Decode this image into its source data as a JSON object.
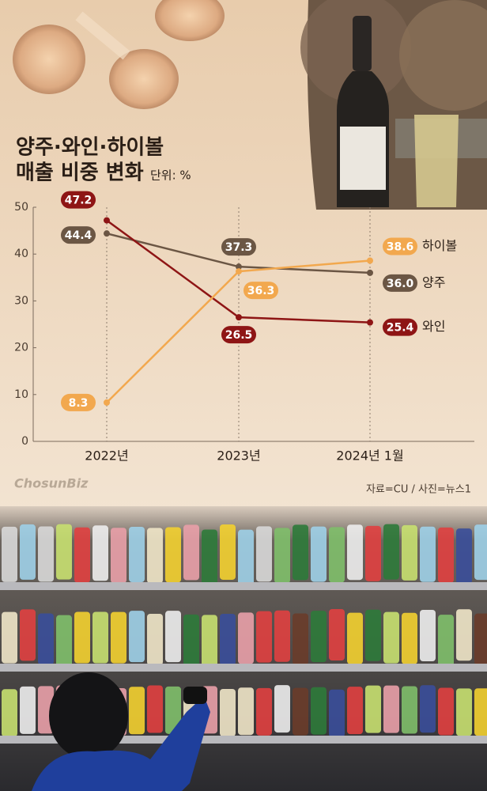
{
  "chart_data": {
    "type": "line",
    "title_lines": [
      "양주·와인·하이볼",
      "매출 비중 변화"
    ],
    "unit": "단위: %",
    "categories": [
      "2022년",
      "2023년",
      "2024년 1월"
    ],
    "series": [
      {
        "name": "양주",
        "color": "#6b5644",
        "values": [
          44.4,
          37.3,
          36.0
        ],
        "value_labels": [
          "44.4",
          "37.3",
          "36.0"
        ]
      },
      {
        "name": "와인",
        "color": "#8e1515",
        "values": [
          47.2,
          26.5,
          25.4
        ]
      },
      {
        "name": "하이볼",
        "color": "#f2a84e",
        "values": [
          8.3,
          36.3,
          38.6
        ]
      }
    ],
    "ylim": [
      0,
      50
    ],
    "yticks": [
      0,
      10,
      20,
      30,
      40,
      50
    ],
    "logo": "ChosunBiz",
    "source": "자료=CU / 사진=뉴스1"
  }
}
